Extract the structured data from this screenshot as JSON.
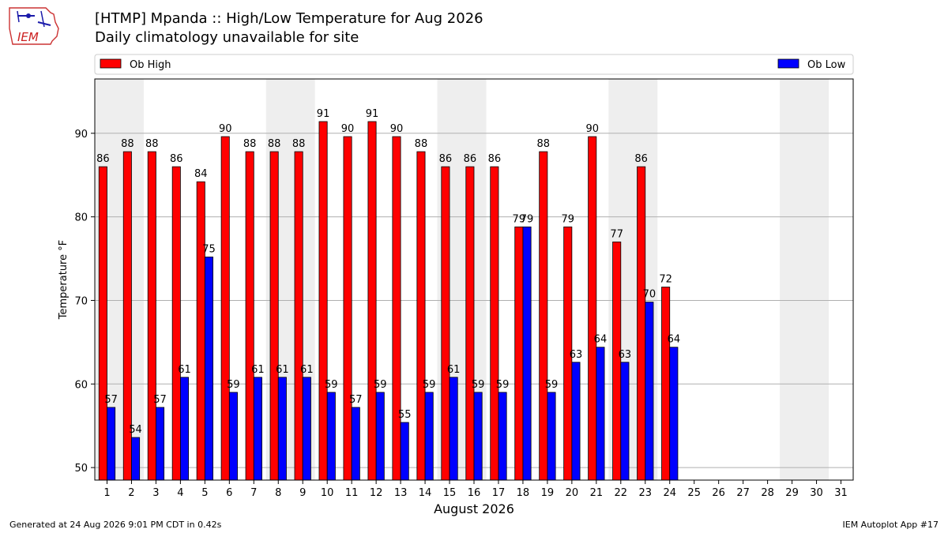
{
  "header": {
    "title": "[HTMP] Mpanda :: High/Low Temperature for Aug 2026",
    "subtitle": "Daily climatology unavailable for site",
    "logo_text": "IEM"
  },
  "footer": {
    "left": "Generated at 24 Aug 2026 9:01 PM CDT in 0.42s",
    "right": "IEM Autoplot App #17"
  },
  "colors": {
    "high": "#ff0000",
    "low": "#0000ff",
    "weekend_band": "#eeeeee",
    "grid": "#b0b0b0"
  },
  "chart_data": {
    "type": "bar",
    "xlabel": "August 2026",
    "ylabel": "Temperature °F",
    "ylim": [
      48.5,
      96.5
    ],
    "yticks": [
      50,
      60,
      70,
      80,
      90
    ],
    "xlim": [
      0.5,
      31.5
    ],
    "categories": [
      "1",
      "2",
      "3",
      "4",
      "5",
      "6",
      "7",
      "8",
      "9",
      "10",
      "11",
      "12",
      "13",
      "14",
      "15",
      "16",
      "17",
      "18",
      "19",
      "20",
      "21",
      "22",
      "23",
      "24",
      "25",
      "26",
      "27",
      "28",
      "29",
      "30",
      "31"
    ],
    "weekend_days": [
      [
        1,
        2
      ],
      [
        8,
        9
      ],
      [
        15,
        16
      ],
      [
        22,
        23
      ],
      [
        29,
        30
      ]
    ],
    "grid": "horizontal",
    "legend_placement": "top, outside plot",
    "series": [
      {
        "name": "Ob High",
        "x": [
          1,
          2,
          3,
          4,
          5,
          6,
          7,
          8,
          9,
          10,
          11,
          12,
          13,
          14,
          15,
          16,
          17,
          18,
          19,
          20,
          21,
          22,
          23,
          24
        ],
        "values": [
          86.0,
          87.8,
          87.8,
          86.0,
          84.2,
          89.6,
          87.8,
          87.8,
          87.8,
          91.4,
          89.6,
          91.4,
          89.6,
          87.8,
          86.0,
          86.0,
          86.0,
          78.8,
          87.8,
          78.8,
          89.6,
          77.0,
          86.0,
          71.6
        ],
        "labels": [
          "86",
          "88",
          "88",
          "86",
          "84",
          "90",
          "88",
          "88",
          "88",
          "91",
          "90",
          "91",
          "90",
          "88",
          "86",
          "86",
          "86",
          "79",
          "88",
          "79",
          "90",
          "77",
          "86",
          "72"
        ]
      },
      {
        "name": "Ob Low",
        "x": [
          1,
          2,
          3,
          4,
          5,
          6,
          7,
          8,
          9,
          10,
          11,
          12,
          13,
          14,
          15,
          16,
          17,
          18,
          19,
          20,
          21,
          22,
          23,
          24
        ],
        "values": [
          57.2,
          53.6,
          57.2,
          60.8,
          75.2,
          59.0,
          60.8,
          60.8,
          60.8,
          59.0,
          57.2,
          59.0,
          55.4,
          59.0,
          60.8,
          59.0,
          59.0,
          78.8,
          59.0,
          62.6,
          64.4,
          62.6,
          69.8,
          64.4
        ],
        "labels": [
          "57",
          "54",
          "57",
          "61",
          "75",
          "59",
          "61",
          "61",
          "61",
          "59",
          "57",
          "59",
          "55",
          "59",
          "61",
          "59",
          "59",
          "79",
          "59",
          "63",
          "64",
          "63",
          "70",
          "64"
        ]
      }
    ]
  }
}
